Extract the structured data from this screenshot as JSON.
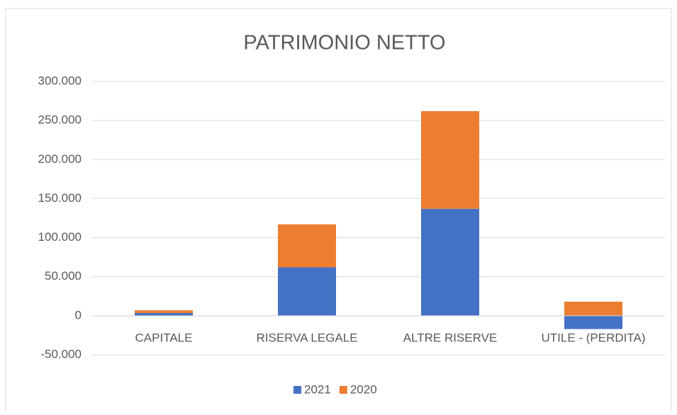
{
  "chart_data": {
    "type": "stacked_bar",
    "title": "PATRIMONIO NETTO",
    "categories": [
      "CAPITALE",
      "RISERVA LEGALE",
      "ALTRE RISERVE",
      "UTILE - (PERDITA)"
    ],
    "series": [
      {
        "name": "2021",
        "color": "#4472c4",
        "values": [
          3500,
          62000,
          137000,
          -17000
        ]
      },
      {
        "name": "2020",
        "color": "#ed7d31",
        "values": [
          3500,
          55000,
          125000,
          18000
        ]
      }
    ],
    "ylim": [
      -50000,
      300000
    ],
    "yticks": [
      {
        "value": -50000,
        "label": "-50.000"
      },
      0,
      {
        "value": 50000,
        "label": "50.000"
      },
      {
        "value": 100000,
        "label": "100.000"
      },
      {
        "value": 150000,
        "label": "150.000"
      },
      {
        "value": 200000,
        "label": "200.000"
      },
      {
        "value": 250000,
        "label": "250.000"
      },
      {
        "value": 300000,
        "label": "300.000"
      }
    ],
    "grid": true,
    "legend": "bottom"
  }
}
